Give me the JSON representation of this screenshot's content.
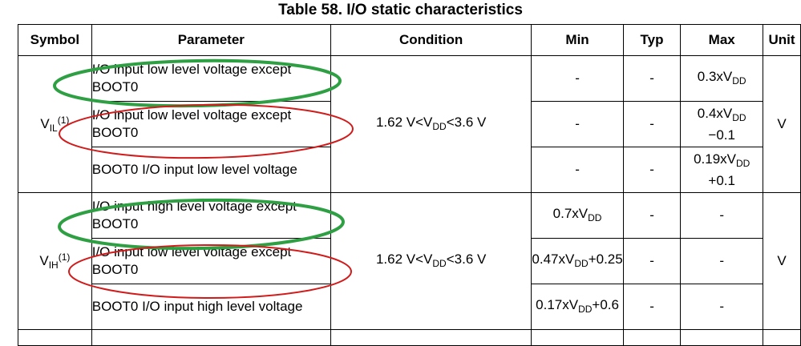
{
  "title": "Table 58. I/O static characteristics",
  "headers": {
    "symbol": "Symbol",
    "parameter": "Parameter",
    "condition": "Condition",
    "min": "Min",
    "typ": "Typ",
    "max": "Max",
    "unit": "Unit"
  },
  "vil": {
    "symbol_main": "V",
    "symbol_sub": "IL",
    "symbol_sup": "(1)",
    "condition_pre": "1.62 V<V",
    "condition_sub": "DD",
    "condition_post": "<3.6 V",
    "unit": "V",
    "rows": [
      {
        "parameter": "I/O input low level voltage except BOOT0",
        "min": "-",
        "typ": "-",
        "max_pre": "0.3xV",
        "max_sub": "DD",
        "max_post": ""
      },
      {
        "parameter": "I/O input low level voltage except BOOT0",
        "min": "-",
        "typ": "-",
        "max_pre": "0.4xV",
        "max_sub": "DD",
        "max_post": "−0.1"
      },
      {
        "parameter": "BOOT0 I/O input low level voltage",
        "min": "-",
        "typ": "-",
        "max_pre": "0.19xV",
        "max_sub": "DD",
        "max_post": "+0.1"
      }
    ]
  },
  "vih": {
    "symbol_main": "V",
    "symbol_sub": "IH",
    "symbol_sup": "(1)",
    "condition_pre": "1.62 V<V",
    "condition_sub": "DD",
    "condition_post": "<3.6 V",
    "unit": "V",
    "rows": [
      {
        "parameter": "I/O input high level voltage except BOOT0",
        "typ": "-",
        "max": "-",
        "min_pre": "0.7xV",
        "min_sub": "DD",
        "min_post": ""
      },
      {
        "parameter": "I/O input low level voltage except BOOT0",
        "typ": "-",
        "max": "-",
        "min_pre": "0.47xV",
        "min_sub": "DD",
        "min_post": "+0.25"
      },
      {
        "parameter": "BOOT0 I/O input high level voltage",
        "typ": "-",
        "max": "-",
        "min_pre": "0.17xV",
        "min_sub": "DD",
        "min_post": "+0.6"
      }
    ]
  },
  "annotation_colors": {
    "green": "#2ea043",
    "red": "#d11a1a"
  }
}
